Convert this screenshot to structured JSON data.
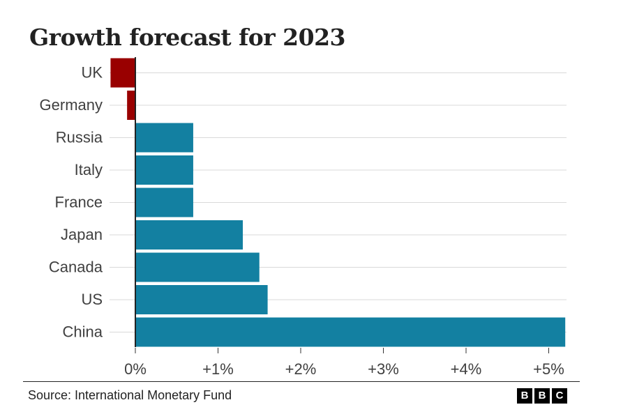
{
  "chart_data": {
    "type": "bar",
    "orientation": "horizontal",
    "title": "Growth forecast for 2023",
    "categories": [
      "UK",
      "Germany",
      "Russia",
      "Italy",
      "France",
      "Japan",
      "Canada",
      "US",
      "China"
    ],
    "values": [
      -0.3,
      -0.1,
      0.7,
      0.7,
      0.7,
      1.3,
      1.5,
      1.6,
      5.2
    ],
    "xlim": [
      -0.3,
      5.2
    ],
    "xticks": [
      0,
      1,
      2,
      3,
      4,
      5
    ],
    "xtick_labels": [
      "0%",
      "+1%",
      "+2%",
      "+3%",
      "+4%",
      "+5%"
    ],
    "colors": {
      "positive": "#1380a1",
      "negative": "#990000",
      "grid": "#d9d9d9",
      "zero_line": "#222222"
    },
    "grid": true
  },
  "footer": {
    "source": "Source: International Monetary Fund",
    "logo_letters": [
      "B",
      "B",
      "C"
    ]
  }
}
